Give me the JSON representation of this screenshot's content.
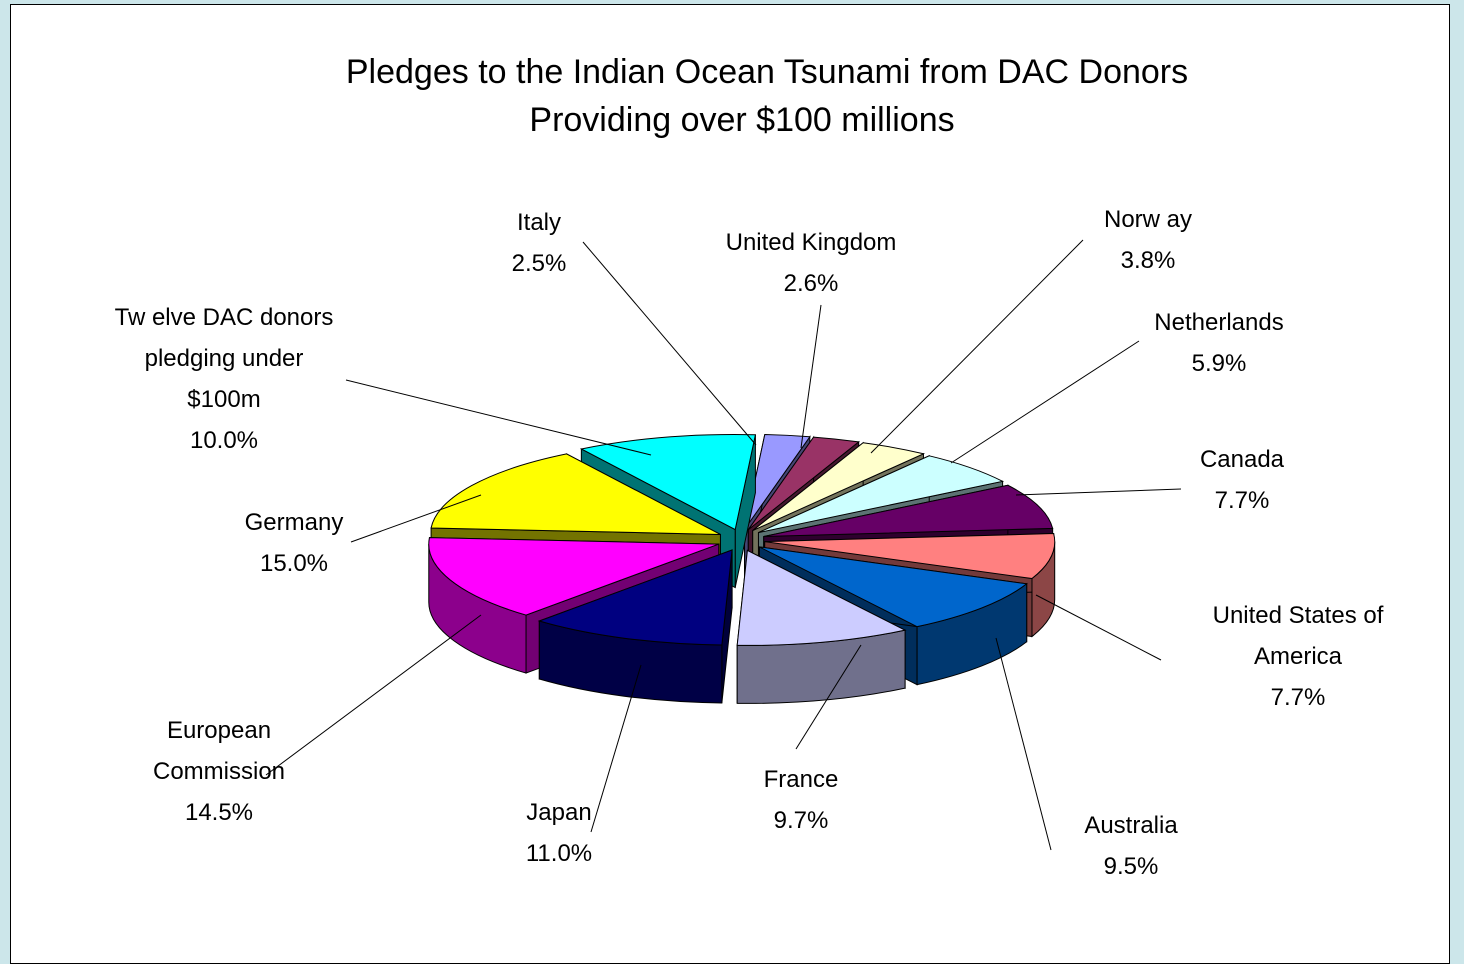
{
  "chart_data": {
    "type": "pie",
    "title_line1": "Pledges to the Indian Ocean Tsunami from DAC Donors",
    "title_line2": "Providing over $100 millions",
    "slices": [
      {
        "label": [
          "Italy"
        ],
        "value": 2.5,
        "pct": "2.5%",
        "color": "#9999ff"
      },
      {
        "label": [
          "United Kingdom"
        ],
        "value": 2.6,
        "pct": "2.6%",
        "color": "#993366"
      },
      {
        "label": [
          "Norw ay"
        ],
        "value": 3.8,
        "pct": "3.8%",
        "color": "#ffffcc"
      },
      {
        "label": [
          "Netherlands"
        ],
        "value": 5.9,
        "pct": "5.9%",
        "color": "#ccffff"
      },
      {
        "label": [
          "Canada"
        ],
        "value": 7.7,
        "pct": "7.7%",
        "color": "#660066"
      },
      {
        "label": [
          "United States of",
          "America"
        ],
        "value": 7.7,
        "pct": "7.7%",
        "color": "#ff8080"
      },
      {
        "label": [
          "Australia"
        ],
        "value": 9.5,
        "pct": "9.5%",
        "color": "#0066cc"
      },
      {
        "label": [
          "France"
        ],
        "value": 9.7,
        "pct": "9.7%",
        "color": "#ccccff"
      },
      {
        "label": [
          "Japan"
        ],
        "value": 11.0,
        "pct": "11.0%",
        "color": "#000080"
      },
      {
        "label": [
          "European",
          "Commission"
        ],
        "value": 14.5,
        "pct": "14.5%",
        "color": "#ff00ff"
      },
      {
        "label": [
          "Germany"
        ],
        "value": 15.0,
        "pct": "15.0%",
        "color": "#ffff00"
      },
      {
        "label": [
          "Tw elve DAC donors",
          "pledging under",
          "$100m"
        ],
        "value": 10.0,
        "pct": "10.0%",
        "color": "#00ffff"
      }
    ]
  }
}
